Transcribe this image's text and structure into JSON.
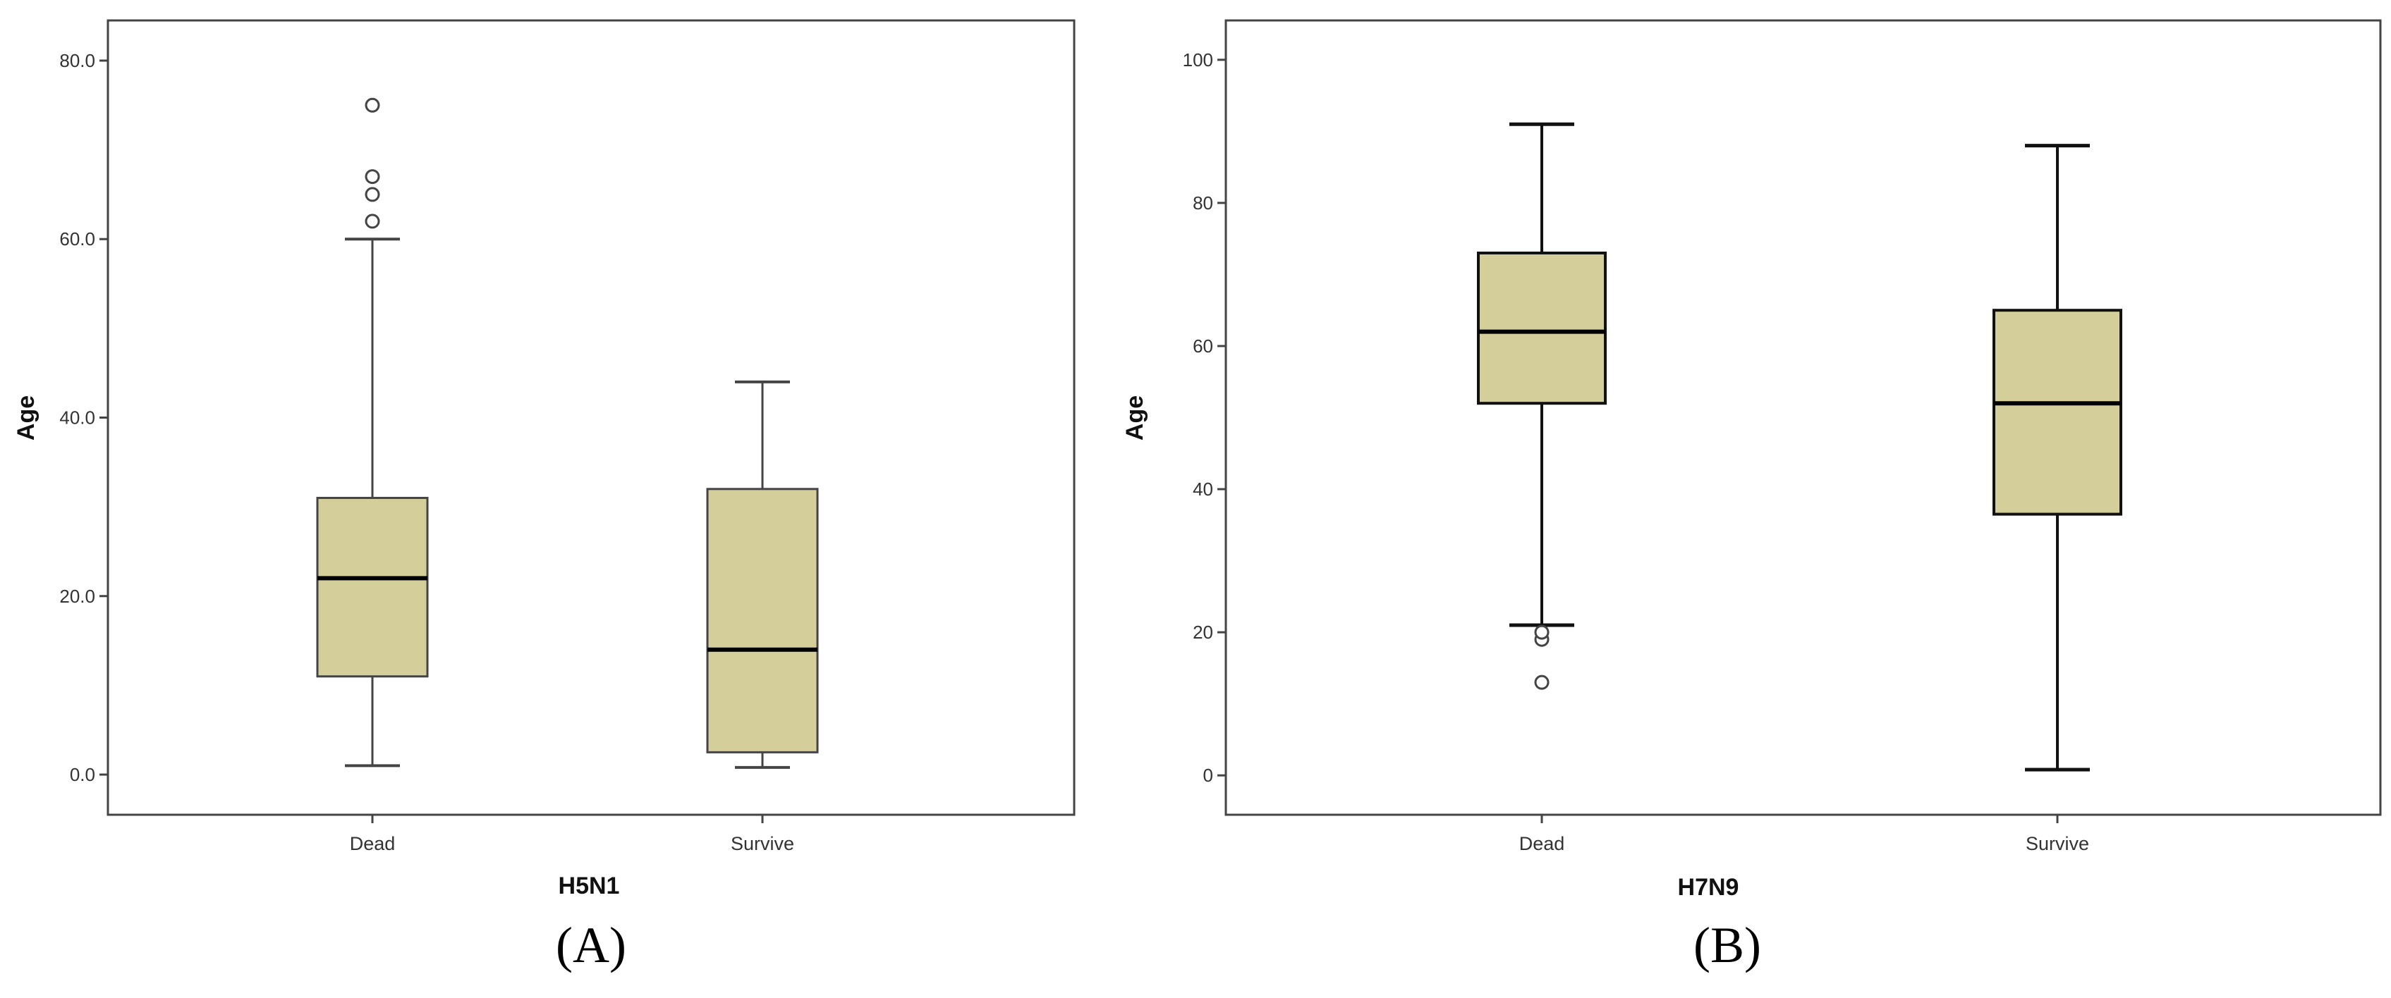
{
  "chart_data": [
    {
      "type": "boxplot",
      "panel_label": "(A)",
      "xlabel": "H5N1",
      "ylabel": "Age",
      "categories": [
        "Dead",
        "Survive"
      ],
      "ylim": [
        -4.5,
        84.5
      ],
      "yticks": [
        0.0,
        20.0,
        40.0,
        60.0,
        80.0
      ],
      "ytick_labels": [
        "0.0",
        "20.0",
        "40.0",
        "60.0",
        "80.0"
      ],
      "grid": false,
      "box_color": "#d4cf9a",
      "boxes": [
        {
          "category": "Dead",
          "whisker_low": 1,
          "q1": 11,
          "median": 22,
          "q3": 31,
          "whisker_high": 60,
          "outliers": [
            62,
            65,
            67,
            75
          ]
        },
        {
          "category": "Survive",
          "whisker_low": 0.8,
          "q1": 2.5,
          "median": 14,
          "q3": 32,
          "whisker_high": 44,
          "outliers": []
        }
      ]
    },
    {
      "type": "boxplot",
      "panel_label": "(B)",
      "xlabel": "H7N9",
      "ylabel": "Age",
      "categories": [
        "Dead",
        "Survive"
      ],
      "ylim": [
        -5.5,
        105.5
      ],
      "yticks": [
        0,
        20,
        40,
        60,
        80,
        100
      ],
      "ytick_labels": [
        "0",
        "20",
        "40",
        "60",
        "80",
        "100"
      ],
      "grid": false,
      "box_color": "#d4cf9a",
      "boxes": [
        {
          "category": "Dead",
          "whisker_low": 21,
          "q1": 52,
          "median": 62,
          "q3": 73,
          "whisker_high": 91,
          "outliers": [
            13,
            19,
            20
          ]
        },
        {
          "category": "Survive",
          "whisker_low": 0.8,
          "q1": 36.5,
          "median": 52,
          "q3": 65,
          "whisker_high": 88,
          "outliers": []
        }
      ]
    }
  ]
}
